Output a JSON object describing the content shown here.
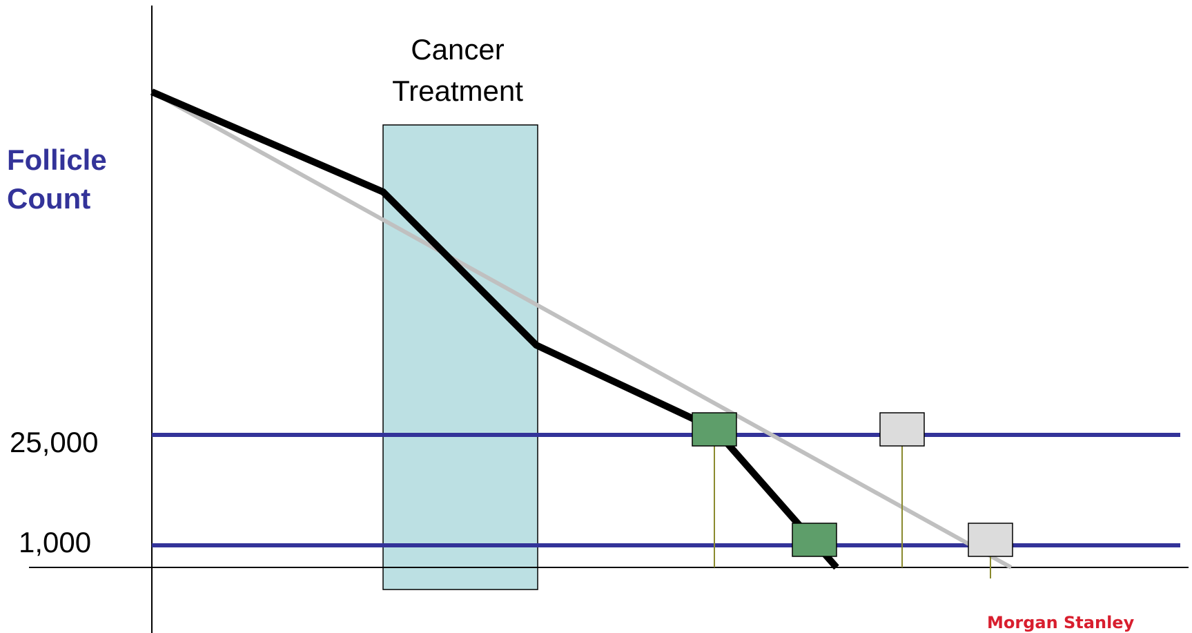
{
  "diagram": {
    "ylabel_line1": "Follicle",
    "ylabel_line2": "Count",
    "treatment_line1": "Cancer",
    "treatment_line2": "Treatment",
    "levels": [
      {
        "label": "25,000",
        "value": 25000
      },
      {
        "label": "1,000",
        "value": 1000
      }
    ],
    "brand": "Morgan Stanley"
  },
  "colors": {
    "ylabel": "#333399",
    "threshold_line": "#333399",
    "treatment_band": "#bce0e3",
    "affected_line": "#000000",
    "unaffected_line": "#c0c0c0",
    "affected_marker": "#5e9e6a",
    "unaffected_marker": "#dcdcdc",
    "drop_line": "#8a8a2e",
    "brand": "#d81e2e"
  }
}
